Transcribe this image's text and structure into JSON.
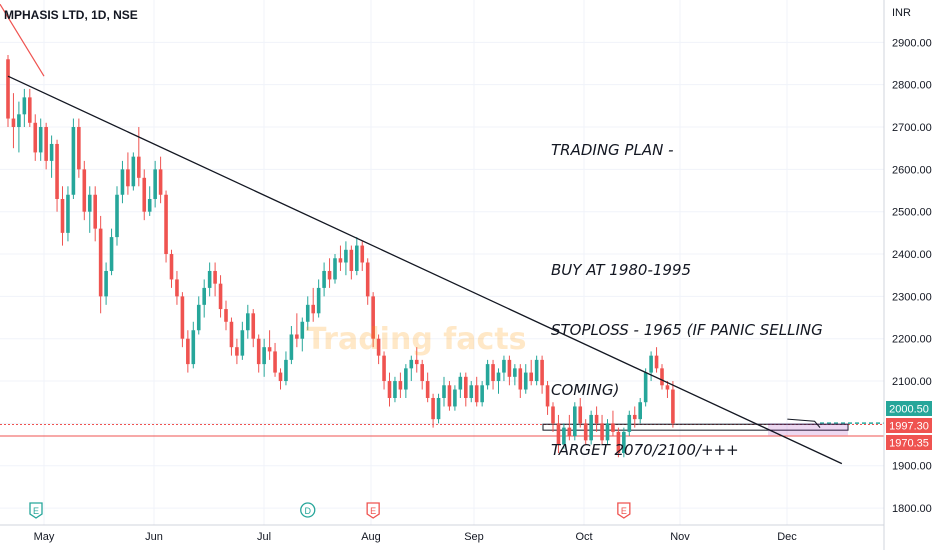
{
  "header": {
    "symbol_title": "MPHASIS LTD, 1D, NSE",
    "currency": "INR"
  },
  "annotation": {
    "lines": [
      "TRADING PLAN -",
      "",
      "BUY AT 1980-1995",
      "STOPLOSS - 1965 (IF PANIC SELLING",
      "COMING)",
      "TARGET 2070/2100/+++"
    ]
  },
  "watermark": "Trading facts",
  "chart_data": {
    "type": "candlestick",
    "title": "MPHASIS LTD, 1D, NSE",
    "y_axis": {
      "label": "INR",
      "range": [
        1760,
        3000
      ],
      "ticks": [
        1800,
        1900,
        2000,
        2100,
        2200,
        2300,
        2400,
        2500,
        2600,
        2700,
        2800,
        2900
      ]
    },
    "x_axis": {
      "labels": [
        "May",
        "Jun",
        "Jul",
        "Aug",
        "Sep",
        "Oct",
        "Nov",
        "Dec"
      ]
    },
    "price_labels": [
      {
        "value": 2000.5,
        "text": "2000.50",
        "color": "#26a69a"
      },
      {
        "value": 1997.3,
        "text": "1997.30",
        "color": "#ef5350"
      },
      {
        "value": 1970.35,
        "text": "1970.35",
        "color": "#ef5350"
      }
    ],
    "trendline": {
      "from": {
        "bar": 0,
        "price": 2820
      },
      "to": {
        "bar": 153,
        "price": 1905
      }
    },
    "event_markers": [
      {
        "letter": "E",
        "type": "earnings",
        "bar": -1
      },
      {
        "letter": "D",
        "type": "dividend",
        "bar": 55
      },
      {
        "letter": "E",
        "type": "earnings",
        "bar": 67
      },
      {
        "letter": "E",
        "type": "earnings",
        "bar": 113
      }
    ],
    "candles": [
      [
        2860,
        2870,
        2700,
        2720
      ],
      [
        2720,
        2780,
        2650,
        2700
      ],
      [
        2700,
        2760,
        2640,
        2730
      ],
      [
        2730,
        2790,
        2700,
        2770
      ],
      [
        2770,
        2790,
        2700,
        2710
      ],
      [
        2710,
        2730,
        2620,
        2640
      ],
      [
        2640,
        2720,
        2620,
        2700
      ],
      [
        2700,
        2710,
        2600,
        2620
      ],
      [
        2620,
        2680,
        2580,
        2660
      ],
      [
        2660,
        2670,
        2500,
        2530
      ],
      [
        2530,
        2560,
        2420,
        2450
      ],
      [
        2450,
        2560,
        2430,
        2540
      ],
      [
        2540,
        2720,
        2530,
        2700
      ],
      [
        2700,
        2720,
        2580,
        2600
      ],
      [
        2600,
        2620,
        2480,
        2500
      ],
      [
        2500,
        2560,
        2450,
        2540
      ],
      [
        2540,
        2560,
        2430,
        2460
      ],
      [
        2460,
        2490,
        2260,
        2300
      ],
      [
        2300,
        2380,
        2280,
        2360
      ],
      [
        2360,
        2460,
        2350,
        2440
      ],
      [
        2440,
        2560,
        2420,
        2540
      ],
      [
        2540,
        2620,
        2520,
        2600
      ],
      [
        2600,
        2640,
        2540,
        2560
      ],
      [
        2560,
        2640,
        2550,
        2630
      ],
      [
        2630,
        2700,
        2560,
        2580
      ],
      [
        2580,
        2600,
        2480,
        2500
      ],
      [
        2500,
        2560,
        2490,
        2530
      ],
      [
        2530,
        2620,
        2510,
        2600
      ],
      [
        2600,
        2630,
        2520,
        2540
      ],
      [
        2540,
        2550,
        2380,
        2400
      ],
      [
        2400,
        2410,
        2320,
        2340
      ],
      [
        2340,
        2360,
        2280,
        2300
      ],
      [
        2300,
        2310,
        2180,
        2200
      ],
      [
        2200,
        2220,
        2120,
        2140
      ],
      [
        2140,
        2240,
        2130,
        2220
      ],
      [
        2220,
        2300,
        2210,
        2280
      ],
      [
        2280,
        2340,
        2250,
        2320
      ],
      [
        2320,
        2380,
        2300,
        2360
      ],
      [
        2360,
        2380,
        2300,
        2330
      ],
      [
        2330,
        2350,
        2250,
        2270
      ],
      [
        2270,
        2290,
        2220,
        2240
      ],
      [
        2240,
        2250,
        2160,
        2180
      ],
      [
        2180,
        2200,
        2140,
        2160
      ],
      [
        2160,
        2240,
        2150,
        2220
      ],
      [
        2220,
        2280,
        2200,
        2260
      ],
      [
        2260,
        2270,
        2180,
        2200
      ],
      [
        2200,
        2210,
        2120,
        2140
      ],
      [
        2140,
        2200,
        2110,
        2180
      ],
      [
        2180,
        2220,
        2150,
        2170
      ],
      [
        2170,
        2190,
        2110,
        2120
      ],
      [
        2120,
        2130,
        2080,
        2100
      ],
      [
        2100,
        2170,
        2090,
        2150
      ],
      [
        2150,
        2230,
        2140,
        2210
      ],
      [
        2210,
        2260,
        2180,
        2200
      ],
      [
        2200,
        2250,
        2170,
        2240
      ],
      [
        2240,
        2300,
        2220,
        2280
      ],
      [
        2280,
        2320,
        2240,
        2260
      ],
      [
        2260,
        2340,
        2250,
        2320
      ],
      [
        2320,
        2380,
        2300,
        2360
      ],
      [
        2360,
        2390,
        2320,
        2340
      ],
      [
        2340,
        2400,
        2330,
        2390
      ],
      [
        2390,
        2420,
        2360,
        2380
      ],
      [
        2380,
        2430,
        2350,
        2410
      ],
      [
        2410,
        2420,
        2340,
        2360
      ],
      [
        2360,
        2440,
        2350,
        2420
      ],
      [
        2420,
        2430,
        2360,
        2380
      ],
      [
        2380,
        2390,
        2280,
        2300
      ],
      [
        2300,
        2310,
        2180,
        2200
      ],
      [
        2200,
        2210,
        2140,
        2160
      ],
      [
        2160,
        2170,
        2080,
        2100
      ],
      [
        2100,
        2120,
        2040,
        2060
      ],
      [
        2060,
        2110,
        2050,
        2100
      ],
      [
        2100,
        2120,
        2060,
        2080
      ],
      [
        2080,
        2140,
        2060,
        2130
      ],
      [
        2130,
        2160,
        2100,
        2150
      ],
      [
        2150,
        2180,
        2120,
        2140
      ],
      [
        2140,
        2150,
        2080,
        2100
      ],
      [
        2100,
        2120,
        2050,
        2060
      ],
      [
        2060,
        2070,
        1990,
        2010
      ],
      [
        2010,
        2070,
        2000,
        2060
      ],
      [
        2060,
        2110,
        2040,
        2090
      ],
      [
        2090,
        2100,
        2030,
        2040
      ],
      [
        2040,
        2090,
        2030,
        2080
      ],
      [
        2080,
        2120,
        2060,
        2110
      ],
      [
        2110,
        2120,
        2040,
        2060
      ],
      [
        2060,
        2100,
        2050,
        2090
      ],
      [
        2090,
        2110,
        2040,
        2050
      ],
      [
        2050,
        2100,
        2040,
        2090
      ],
      [
        2090,
        2150,
        2080,
        2140
      ],
      [
        2140,
        2150,
        2080,
        2100
      ],
      [
        2100,
        2130,
        2070,
        2120
      ],
      [
        2120,
        2160,
        2100,
        2150
      ],
      [
        2150,
        2160,
        2090,
        2110
      ],
      [
        2110,
        2140,
        2090,
        2130
      ],
      [
        2130,
        2140,
        2060,
        2080
      ],
      [
        2080,
        2140,
        2070,
        2120
      ],
      [
        2120,
        2150,
        2090,
        2100
      ],
      [
        2100,
        2160,
        2090,
        2150
      ],
      [
        2150,
        2160,
        2070,
        2090
      ],
      [
        2090,
        2100,
        2020,
        2040
      ],
      [
        2040,
        2050,
        1980,
        2000
      ],
      [
        2000,
        2020,
        1930,
        1950
      ],
      [
        1950,
        2000,
        1940,
        1990
      ],
      [
        1990,
        2020,
        1960,
        1970
      ],
      [
        1970,
        2050,
        1960,
        2040
      ],
      [
        2040,
        2060,
        1990,
        2000
      ],
      [
        2000,
        2010,
        1950,
        1960
      ],
      [
        1960,
        2030,
        1950,
        2020
      ],
      [
        2020,
        2040,
        1980,
        2000
      ],
      [
        2000,
        2020,
        1950,
        1960
      ],
      [
        1960,
        2010,
        1950,
        2000
      ],
      [
        2000,
        2030,
        1970,
        1980
      ],
      [
        1980,
        1990,
        1920,
        1930
      ],
      [
        1930,
        1990,
        1920,
        1980
      ],
      [
        1980,
        2030,
        1970,
        2020
      ],
      [
        2020,
        2040,
        1990,
        2010
      ],
      [
        2010,
        2060,
        2000,
        2050
      ],
      [
        2050,
        2130,
        2040,
        2120
      ],
      [
        2120,
        2170,
        2100,
        2160
      ],
      [
        2160,
        2180,
        2120,
        2130
      ],
      [
        2130,
        2140,
        2080,
        2090
      ],
      [
        2090,
        2100,
        2060,
        2080
      ],
      [
        2080,
        2100,
        1990,
        2000
      ]
    ]
  }
}
